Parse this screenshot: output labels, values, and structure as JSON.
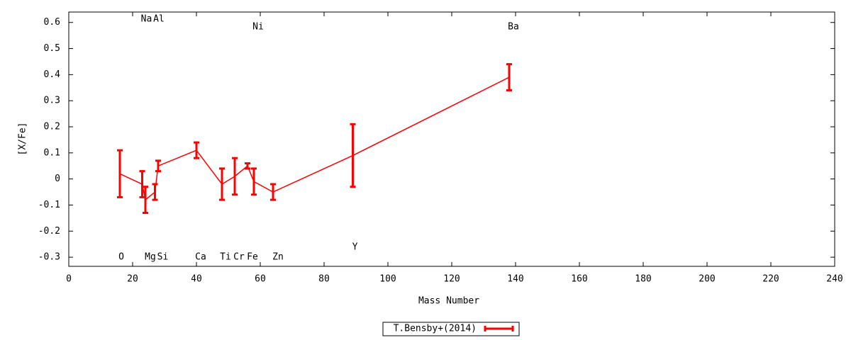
{
  "chart_data": {
    "type": "line",
    "x_label": "Mass Number",
    "y_label": "[X/Fe]",
    "x": [
      16,
      23,
      24,
      27,
      28,
      40,
      48,
      52,
      56,
      58,
      64,
      89,
      138
    ],
    "point_labels": [
      "O",
      "Na",
      "Mg",
      "Si",
      "Al",
      "Ca",
      "Ti",
      "Cr",
      "Fe",
      "Ni",
      "Zn",
      "Y",
      "Ba"
    ],
    "series": [
      {
        "name": "T.Bensby+(2014)",
        "color": "#ff0000",
        "values": [
          0.02,
          -0.02,
          -0.08,
          -0.05,
          0.05,
          0.11,
          -0.02,
          0.01,
          0.05,
          -0.01,
          -0.05,
          0.09,
          0.39
        ],
        "errors": [
          0.09,
          0.05,
          0.05,
          0.03,
          0.02,
          0.03,
          0.06,
          0.07,
          0.01,
          0.05,
          0.03,
          0.12,
          0.05
        ]
      }
    ],
    "xlim": [
      0,
      240
    ],
    "xticks": [
      0,
      20,
      40,
      60,
      80,
      100,
      120,
      140,
      160,
      180,
      200,
      220,
      240
    ],
    "ylim": [
      -0.335,
      0.64
    ],
    "yticks": [
      -0.3,
      -0.2,
      -0.1,
      0,
      0.1,
      0.2,
      0.3,
      0.4,
      0.5,
      0.6
    ],
    "legend": "bottom"
  }
}
